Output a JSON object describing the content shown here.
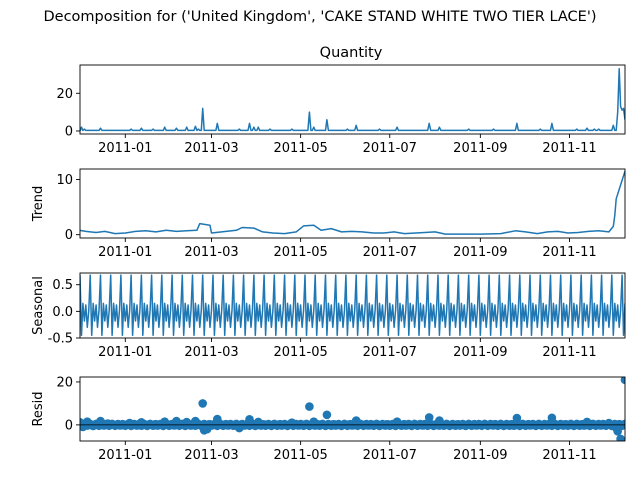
{
  "chart_data": {
    "type": "line",
    "title": "Decomposition for ('United Kingdom', 'CAKE STAND WHITE TWO TIER LACE')",
    "x_range": [
      "2010-12-01",
      "2011-12-09"
    ],
    "x_ticks": [
      "2011-01",
      "2011-03",
      "2011-05",
      "2011-07",
      "2011-09",
      "2011-11"
    ],
    "color": "#1f77b4",
    "panels": [
      {
        "name": "observed",
        "title": "Quantity",
        "ylabel": "",
        "kind": "line",
        "ylim": [
          -1.6,
          35
        ],
        "yticks": [
          0,
          20
        ],
        "baseline": 0.3,
        "spikes": [
          [
            "2010-12-01",
            0
          ],
          [
            "2010-12-02",
            2
          ],
          [
            "2010-12-04",
            1
          ],
          [
            "2010-12-15",
            1.5
          ],
          [
            "2011-01-05",
            1
          ],
          [
            "2011-01-12",
            1.5
          ],
          [
            "2011-01-20",
            1
          ],
          [
            "2011-01-28",
            2
          ],
          [
            "2011-02-05",
            1.5
          ],
          [
            "2011-02-12",
            2
          ],
          [
            "2011-02-18",
            2.5
          ],
          [
            "2011-02-20",
            1
          ],
          [
            "2011-02-23",
            12
          ],
          [
            "2011-03-05",
            4
          ],
          [
            "2011-03-20",
            1
          ],
          [
            "2011-03-27",
            4
          ],
          [
            "2011-03-30",
            2
          ],
          [
            "2011-04-02",
            2
          ],
          [
            "2011-04-10",
            1
          ],
          [
            "2011-04-25",
            1
          ],
          [
            "2011-05-07",
            10
          ],
          [
            "2011-05-10",
            2
          ],
          [
            "2011-05-19",
            6
          ],
          [
            "2011-06-02",
            1
          ],
          [
            "2011-06-08",
            3
          ],
          [
            "2011-06-24",
            1
          ],
          [
            "2011-07-06",
            2
          ],
          [
            "2011-07-28",
            4
          ],
          [
            "2011-08-04",
            2
          ],
          [
            "2011-08-24",
            1
          ],
          [
            "2011-09-10",
            1
          ],
          [
            "2011-09-26",
            4
          ],
          [
            "2011-10-12",
            1
          ],
          [
            "2011-10-20",
            4
          ],
          [
            "2011-11-06",
            1
          ],
          [
            "2011-11-13",
            1.5
          ],
          [
            "2011-11-18",
            1
          ],
          [
            "2011-11-21",
            1
          ],
          [
            "2011-12-01",
            3
          ],
          [
            "2011-12-04",
            10
          ],
          [
            "2011-12-05",
            33
          ],
          [
            "2011-12-06",
            13
          ],
          [
            "2011-12-07",
            11
          ],
          [
            "2011-12-08",
            12
          ],
          [
            "2011-12-09",
            6
          ]
        ]
      },
      {
        "name": "trend",
        "title": "",
        "ylabel": "Trend",
        "kind": "line",
        "ylim": [
          -0.6,
          11.9
        ],
        "yticks": [
          0,
          10
        ],
        "points": [
          [
            "2010-12-01",
            0.8
          ],
          [
            "2010-12-05",
            0.6
          ],
          [
            "2010-12-12",
            0.4
          ],
          [
            "2010-12-18",
            0.6
          ],
          [
            "2010-12-25",
            0.2
          ],
          [
            "2011-01-01",
            0.3
          ],
          [
            "2011-01-08",
            0.6
          ],
          [
            "2011-01-15",
            0.7
          ],
          [
            "2011-01-22",
            0.5
          ],
          [
            "2011-01-29",
            0.8
          ],
          [
            "2011-02-05",
            0.6
          ],
          [
            "2011-02-12",
            0.7
          ],
          [
            "2011-02-19",
            0.8
          ],
          [
            "2011-02-21",
            2.0
          ],
          [
            "2011-02-28",
            1.7
          ],
          [
            "2011-03-01",
            0.3
          ],
          [
            "2011-03-08",
            0.5
          ],
          [
            "2011-03-18",
            0.8
          ],
          [
            "2011-03-22",
            1.3
          ],
          [
            "2011-03-30",
            1.2
          ],
          [
            "2011-04-05",
            0.5
          ],
          [
            "2011-04-12",
            0.3
          ],
          [
            "2011-04-20",
            0.2
          ],
          [
            "2011-04-28",
            0.5
          ],
          [
            "2011-05-03",
            1.6
          ],
          [
            "2011-05-10",
            1.7
          ],
          [
            "2011-05-15",
            0.8
          ],
          [
            "2011-05-22",
            1.1
          ],
          [
            "2011-05-29",
            0.5
          ],
          [
            "2011-06-05",
            0.6
          ],
          [
            "2011-06-12",
            0.5
          ],
          [
            "2011-06-20",
            0.3
          ],
          [
            "2011-06-27",
            0.3
          ],
          [
            "2011-07-04",
            0.5
          ],
          [
            "2011-07-11",
            0.2
          ],
          [
            "2011-07-25",
            0.4
          ],
          [
            "2011-08-01",
            0.5
          ],
          [
            "2011-08-08",
            0.1
          ],
          [
            "2011-08-20",
            0.1
          ],
          [
            "2011-09-01",
            0.1
          ],
          [
            "2011-09-15",
            0.2
          ],
          [
            "2011-09-25",
            0.7
          ],
          [
            "2011-10-02",
            0.5
          ],
          [
            "2011-10-10",
            0.2
          ],
          [
            "2011-10-17",
            0.5
          ],
          [
            "2011-10-24",
            0.6
          ],
          [
            "2011-10-31",
            0.3
          ],
          [
            "2011-11-07",
            0.4
          ],
          [
            "2011-11-14",
            0.6
          ],
          [
            "2011-11-21",
            0.7
          ],
          [
            "2011-11-28",
            0.5
          ],
          [
            "2011-12-01",
            1.5
          ],
          [
            "2011-12-02",
            3.5
          ],
          [
            "2011-12-03",
            6.5
          ],
          [
            "2011-12-06",
            9.0
          ],
          [
            "2011-12-09",
            11.5
          ]
        ]
      },
      {
        "name": "seasonal",
        "title": "",
        "ylabel": "Seasonal",
        "kind": "line",
        "ylim": [
          -0.5,
          0.72
        ],
        "yticks": [
          -0.5,
          0.0,
          0.5
        ],
        "period_days": 7,
        "weekly_pattern": [
          0.68,
          -0.45,
          0.15,
          -0.18,
          0.12,
          -0.3,
          0.02
        ]
      },
      {
        "name": "resid",
        "title": "",
        "ylabel": "Resid",
        "kind": "scatter",
        "ylim": [
          -7.5,
          22.3
        ],
        "yticks": [
          0,
          20
        ],
        "points": [
          [
            "2010-12-01",
            1.2
          ],
          [
            "2010-12-03",
            -1.0
          ],
          [
            "2010-12-06",
            1.5
          ],
          [
            "2010-12-10",
            -0.5
          ],
          [
            "2010-12-15",
            1.8
          ],
          [
            "2010-12-20",
            0.6
          ],
          [
            "2011-01-04",
            0.9
          ],
          [
            "2011-01-12",
            1.2
          ],
          [
            "2011-01-28",
            1.5
          ],
          [
            "2011-02-05",
            1.8
          ],
          [
            "2011-02-12",
            1.3
          ],
          [
            "2011-02-18",
            1.8
          ],
          [
            "2011-02-23",
            10.0
          ],
          [
            "2011-02-24",
            -2.5
          ],
          [
            "2011-02-26",
            -2.0
          ],
          [
            "2011-03-05",
            2.7
          ],
          [
            "2011-03-20",
            -1.5
          ],
          [
            "2011-03-27",
            2.6
          ],
          [
            "2011-04-02",
            1.4
          ],
          [
            "2011-04-25",
            1.0
          ],
          [
            "2011-05-07",
            8.5
          ],
          [
            "2011-05-10",
            1.5
          ],
          [
            "2011-05-19",
            4.7
          ],
          [
            "2011-06-08",
            2.0
          ],
          [
            "2011-07-06",
            1.5
          ],
          [
            "2011-07-28",
            3.5
          ],
          [
            "2011-08-04",
            2.0
          ],
          [
            "2011-09-26",
            3.2
          ],
          [
            "2011-10-20",
            3.3
          ],
          [
            "2011-11-13",
            1.4
          ],
          [
            "2011-11-28",
            0.9
          ],
          [
            "2011-12-03",
            -1.4
          ],
          [
            "2011-12-04",
            -3.0
          ],
          [
            "2011-12-06",
            -6.5
          ],
          [
            "2011-12-09",
            21.0
          ]
        ]
      }
    ]
  }
}
